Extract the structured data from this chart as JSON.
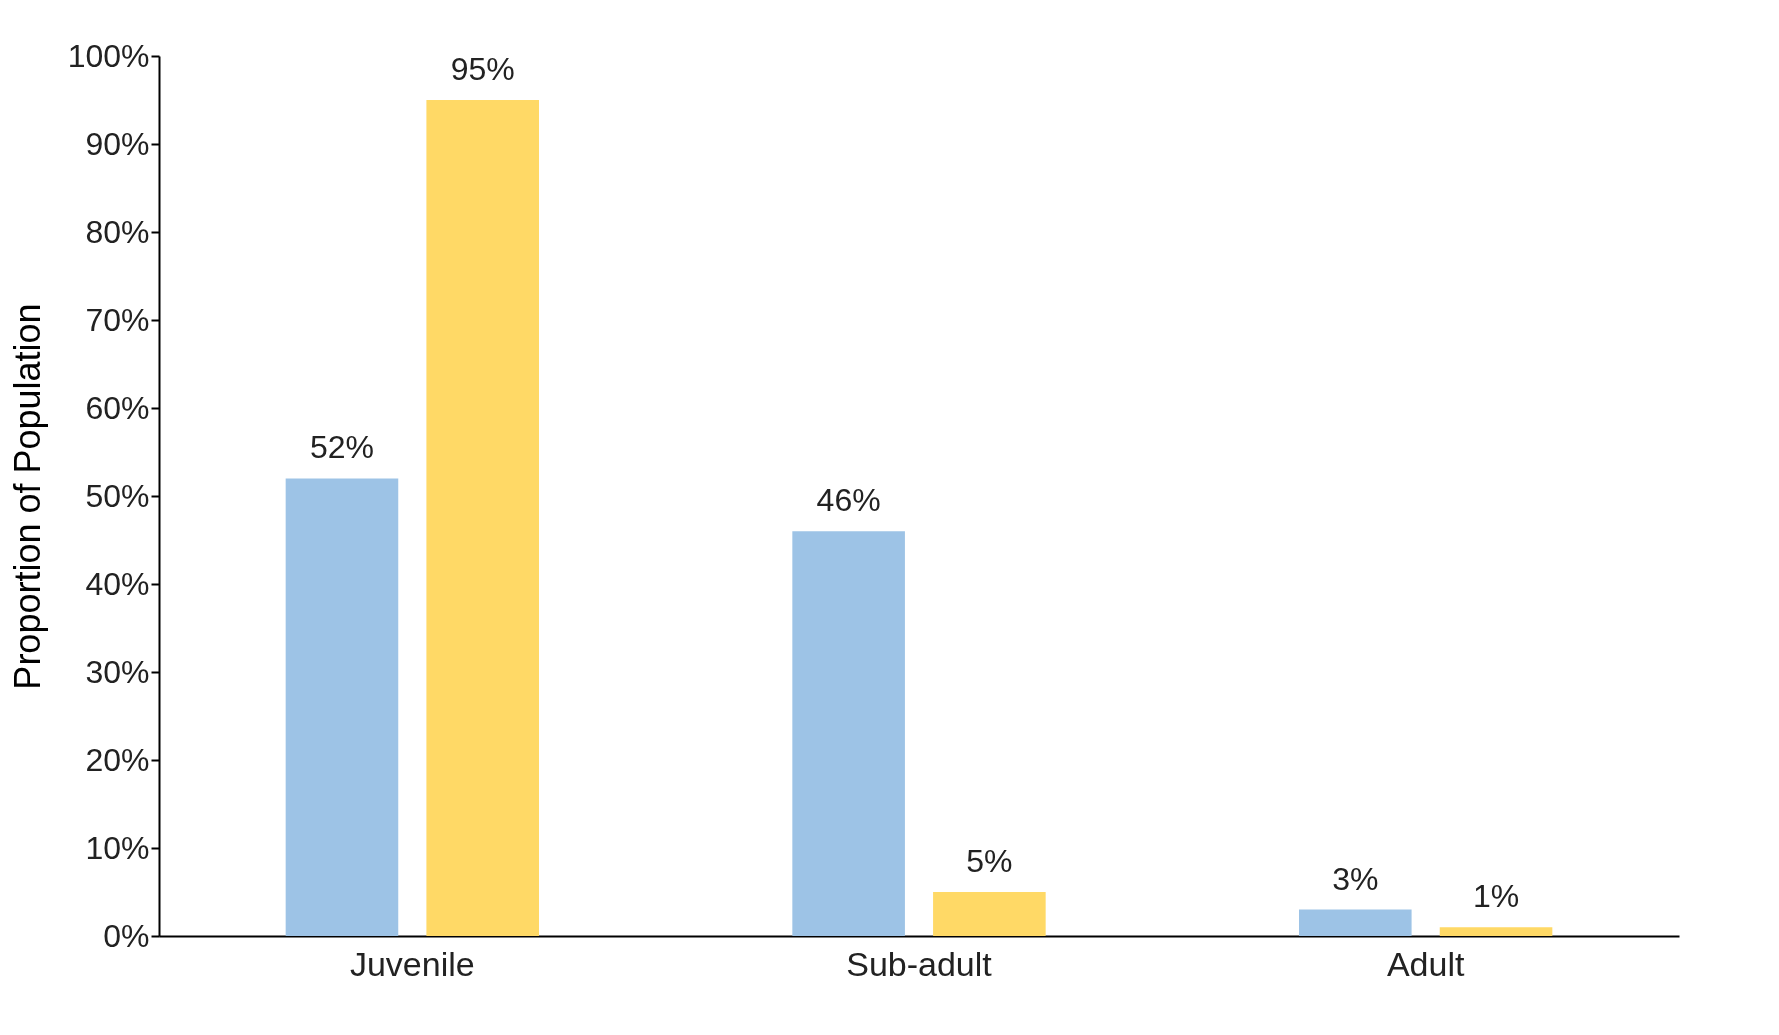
{
  "chart_data": {
    "type": "bar",
    "ylabel": "Proportion of Population",
    "categories": [
      "Juvenile",
      "Sub-adult",
      "Adult"
    ],
    "series": [
      {
        "color": "#9dc3e6",
        "values": [
          52,
          46,
          3
        ],
        "value_labels": [
          "52%",
          "46%",
          "3%"
        ]
      },
      {
        "color": "#ffd966",
        "values": [
          95,
          5,
          1
        ],
        "value_labels": [
          "95%",
          "5%",
          "1%"
        ]
      }
    ],
    "ylim": [
      0,
      100
    ],
    "yticks": [
      {
        "value": 0,
        "label": "0%"
      },
      {
        "value": 10,
        "label": "10%"
      },
      {
        "value": 20,
        "label": "20%"
      },
      {
        "value": 30,
        "label": "30%"
      },
      {
        "value": 40,
        "label": "40%"
      },
      {
        "value": 50,
        "label": "50%"
      },
      {
        "value": 60,
        "label": "60%"
      },
      {
        "value": 70,
        "label": "70%"
      },
      {
        "value": 80,
        "label": "80%"
      },
      {
        "value": 90,
        "label": "90%"
      },
      {
        "value": 100,
        "label": "100%"
      }
    ],
    "grid": false,
    "legend": false
  }
}
